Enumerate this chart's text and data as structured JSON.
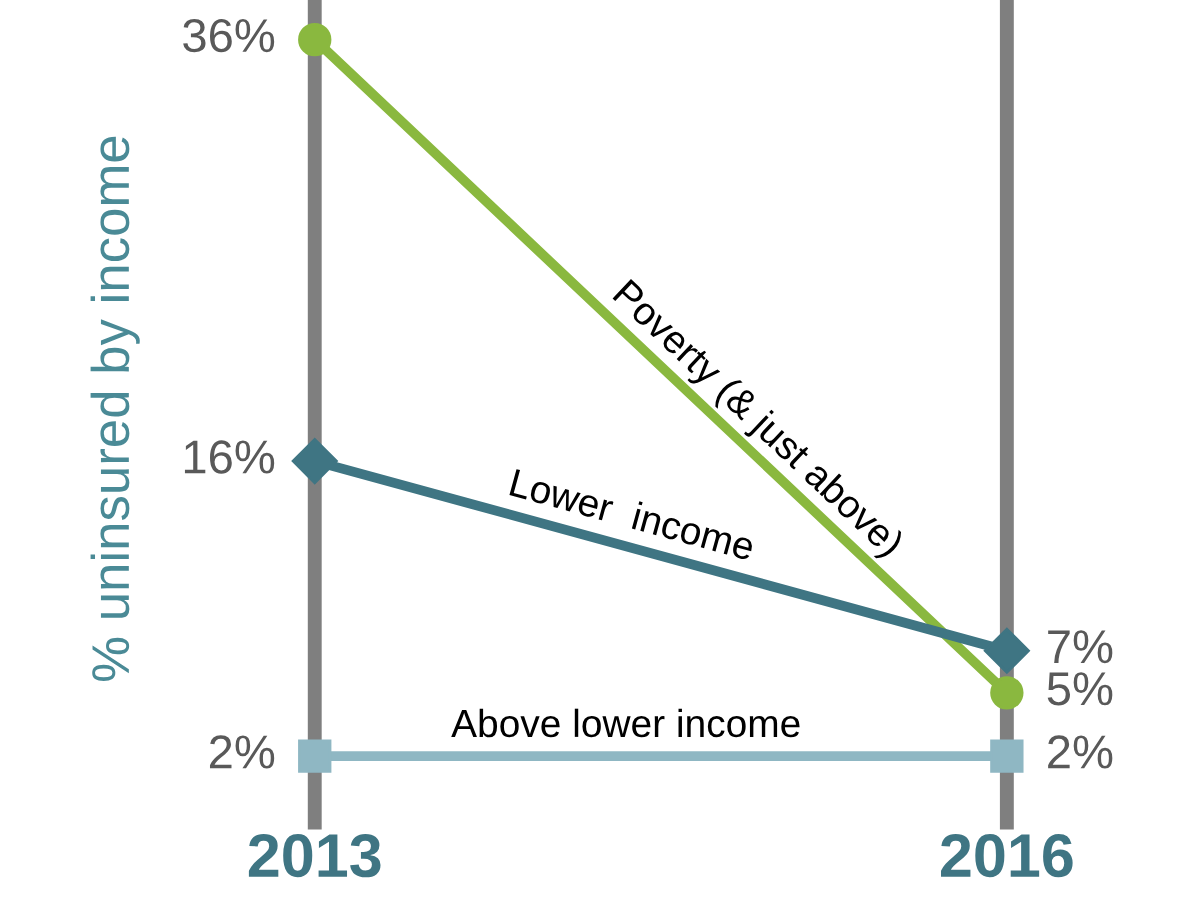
{
  "chart_data": {
    "type": "line",
    "ylabel": "% uninsured by income",
    "categories": [
      "2013",
      "2016"
    ],
    "grid": "x",
    "series": [
      {
        "name": "Poverty (& just above)",
        "color": "#8ab83f",
        "marker": "circle",
        "values": [
          36,
          5
        ],
        "value_labels": [
          "36%",
          "5%"
        ]
      },
      {
        "name": "Lower  income",
        "color": "#3f7583",
        "marker": "diamond",
        "values": [
          16,
          7
        ],
        "value_labels": [
          "16%",
          "7%"
        ]
      },
      {
        "name": "Above lower income",
        "color": "#8fb7c3",
        "marker": "square",
        "values": [
          2,
          2
        ],
        "value_labels": [
          "2%",
          "2%"
        ]
      }
    ]
  }
}
